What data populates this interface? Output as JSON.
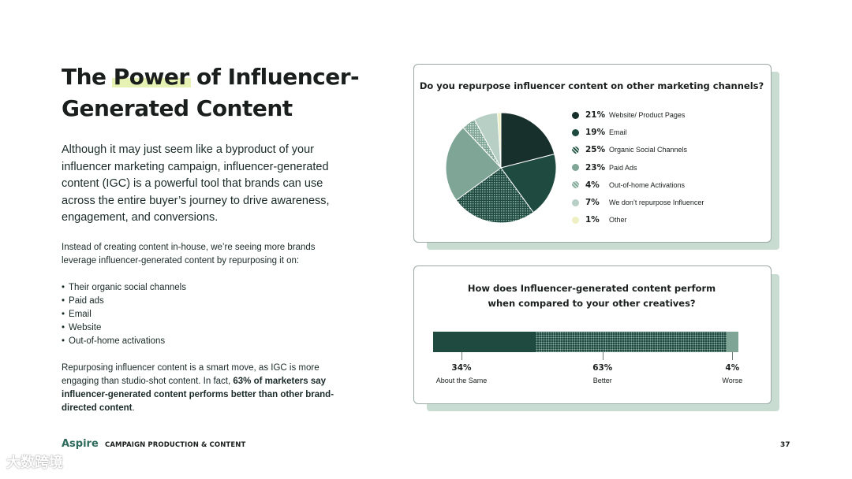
{
  "title": {
    "part1": "The ",
    "highlight": "Power",
    "part2": " of Influencer-Generated Content"
  },
  "intro": "Although it may just seem like a byproduct of your influencer marketing campaign, influencer-generated content (IGC) is a powerful tool that brands can use across the entire buyer’s journey to drive awareness, engagement, and conversions.",
  "para2": "Instead of creating content in-house, we’re seeing more brands leverage influencer-generated content by repurposing it on:",
  "bullets": [
    "Their organic social channels",
    "Paid ads",
    "Email",
    "Website",
    "Out-of-home activations"
  ],
  "para3": {
    "plain": "Repurposing influencer content is a smart move, as IGC is more engaging than studio-shot content. In fact, ",
    "bold": "63% of marketers say influencer-generated content performs better than other brand-directed content",
    "end": "."
  },
  "footer": {
    "logo": "Aspire",
    "section": "CAMPAIGN PRODUCTION & CONTENT",
    "page": "37"
  },
  "watermark": "大数跨境",
  "colors": {
    "dark": "#18302b",
    "green": "#1f4a40",
    "mid": "#7fa597",
    "light": "#b7cfc4",
    "cream": "#eef0c4",
    "shadow": "#c8dcd2"
  },
  "chart_data": [
    {
      "type": "pie",
      "title": "Do you repurpose influencer content on other marketing channels?",
      "slices": [
        {
          "label": "Website/ Product Pages",
          "value": 21,
          "pct": "21%",
          "color": "#18302b",
          "pattern": "solid"
        },
        {
          "label": "Email",
          "value": 19,
          "pct": "19%",
          "color": "#1f4a40",
          "pattern": "solid"
        },
        {
          "label": "Organic Social Channels",
          "value": 25,
          "pct": "25%",
          "color": "#1f4a40",
          "pattern": "dots"
        },
        {
          "label": "Paid Ads",
          "value": 23,
          "pct": "23%",
          "color": "#7fa597",
          "pattern": "solid"
        },
        {
          "label": "Out-of-home Activations",
          "value": 4,
          "pct": "4%",
          "color": "#7fa597",
          "pattern": "dots"
        },
        {
          "label": "We don’t repurpose Influencer",
          "value": 7,
          "pct": "7%",
          "color": "#b7cfc4",
          "pattern": "solid"
        },
        {
          "label": "Other",
          "value": 1,
          "pct": "1%",
          "color": "#eef0c4",
          "pattern": "solid"
        }
      ]
    },
    {
      "type": "bar",
      "orientation": "stacked-horizontal",
      "title_line1": "How does Influencer-generated content perform",
      "title_line2": "when compared to your other creatives?",
      "segments": [
        {
          "label": "About the Same",
          "value": 34,
          "pct": "34%",
          "color": "#1f4a40",
          "pattern": "solid"
        },
        {
          "label": "Better",
          "value": 63,
          "pct": "63%",
          "color": "#1f4a40",
          "pattern": "dots"
        },
        {
          "label": "Worse",
          "value": 4,
          "pct": "4%",
          "color": "#7fa597",
          "pattern": "solid"
        }
      ]
    }
  ]
}
